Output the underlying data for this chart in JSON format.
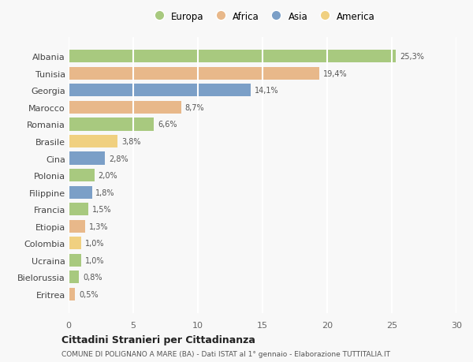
{
  "countries": [
    "Albania",
    "Tunisia",
    "Georgia",
    "Marocco",
    "Romania",
    "Brasile",
    "Cina",
    "Polonia",
    "Filippine",
    "Francia",
    "Etiopia",
    "Colombia",
    "Ucraina",
    "Bielorussia",
    "Eritrea"
  ],
  "values": [
    25.3,
    19.4,
    14.1,
    8.7,
    6.6,
    3.8,
    2.8,
    2.0,
    1.8,
    1.5,
    1.3,
    1.0,
    1.0,
    0.8,
    0.5
  ],
  "labels": [
    "25,3%",
    "19,4%",
    "14,1%",
    "8,7%",
    "6,6%",
    "3,8%",
    "2,8%",
    "2,0%",
    "1,8%",
    "1,5%",
    "1,3%",
    "1,0%",
    "1,0%",
    "0,8%",
    "0,5%"
  ],
  "continents": [
    "Europa",
    "Africa",
    "Asia",
    "Africa",
    "Europa",
    "America",
    "Asia",
    "Europa",
    "Asia",
    "Europa",
    "Africa",
    "America",
    "Europa",
    "Europa",
    "Africa"
  ],
  "continent_colors": {
    "Europa": "#a8c97f",
    "Africa": "#e8b88a",
    "Asia": "#7b9fc7",
    "America": "#f0d080"
  },
  "legend_order": [
    "Europa",
    "Africa",
    "Asia",
    "America"
  ],
  "title": "Cittadini Stranieri per Cittadinanza",
  "subtitle": "COMUNE DI POLIGNANO A MARE (BA) - Dati ISTAT al 1° gennaio - Elaborazione TUTTITALIA.IT",
  "xlim": [
    0,
    30
  ],
  "xticks": [
    0,
    5,
    10,
    15,
    20,
    25,
    30
  ],
  "bg_color": "#f8f8f8",
  "grid_color": "#ffffff",
  "bar_height": 0.75
}
